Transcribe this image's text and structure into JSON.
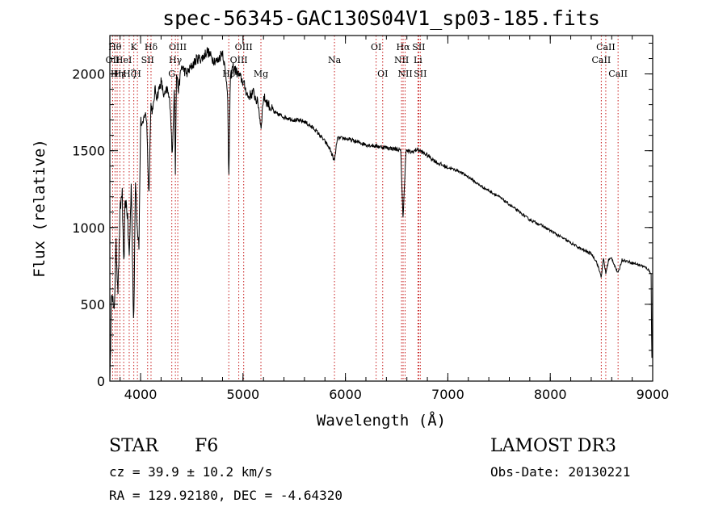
{
  "chart_data": {
    "type": "line",
    "title": "spec-56345-GAC130S04V1_sp03-185.fits",
    "xlabel": "Wavelength (Å)",
    "ylabel": "Flux (relative)",
    "xlim": [
      3700,
      9000
    ],
    "ylim": [
      0,
      2250
    ],
    "xticks": [
      4000,
      5000,
      6000,
      7000,
      8000,
      9000
    ],
    "yticks": [
      0,
      500,
      1000,
      1500,
      2000
    ],
    "grid": false,
    "series": [
      {
        "name": "flux",
        "x": [
          3700,
          3720,
          3740,
          3760,
          3780,
          3800,
          3820,
          3835,
          3850,
          3870,
          3889,
          3910,
          3933,
          3950,
          3968,
          3985,
          4000,
          4020,
          4040,
          4060,
          4080,
          4101,
          4120,
          4140,
          4160,
          4180,
          4200,
          4230,
          4260,
          4290,
          4310,
          4330,
          4340,
          4350,
          4370,
          4400,
          4450,
          4500,
          4550,
          4600,
          4650,
          4700,
          4750,
          4800,
          4830,
          4850,
          4861,
          4875,
          4900,
          4950,
          5000,
          5050,
          5100,
          5150,
          5175,
          5200,
          5250,
          5300,
          5400,
          5500,
          5600,
          5700,
          5800,
          5850,
          5893,
          5920,
          6000,
          6100,
          6200,
          6300,
          6400,
          6500,
          6540,
          6563,
          6590,
          6650,
          6700,
          6800,
          6900,
          7000,
          7100,
          7200,
          7300,
          7400,
          7500,
          7600,
          7700,
          7800,
          7900,
          8000,
          8100,
          8200,
          8300,
          8400,
          8450,
          8498,
          8520,
          8542,
          8570,
          8600,
          8662,
          8700,
          8800,
          8900,
          8950,
          8985,
          8990,
          8995,
          9000
        ],
        "values": [
          0,
          650,
          400,
          880,
          600,
          1100,
          1250,
          700,
          1200,
          1100,
          800,
          1300,
          300,
          1350,
          1000,
          900,
          1700,
          1650,
          1750,
          1700,
          1200,
          1800,
          1750,
          1900,
          1850,
          1900,
          1950,
          1850,
          1900,
          1800,
          1450,
          1950,
          1350,
          2000,
          1900,
          2050,
          2000,
          2050,
          2100,
          2100,
          2150,
          2100,
          2080,
          2150,
          2000,
          1900,
          1250,
          1950,
          2050,
          2000,
          1950,
          1850,
          1880,
          1800,
          1650,
          1850,
          1800,
          1750,
          1720,
          1700,
          1690,
          1640,
          1560,
          1510,
          1430,
          1580,
          1580,
          1560,
          1540,
          1530,
          1520,
          1510,
          1500,
          1050,
          1500,
          1490,
          1510,
          1470,
          1420,
          1390,
          1370,
          1330,
          1280,
          1240,
          1200,
          1150,
          1100,
          1050,
          1020,
          980,
          940,
          900,
          860,
          830,
          780,
          680,
          800,
          700,
          790,
          800,
          700,
          790,
          770,
          750,
          730,
          700,
          200,
          100,
          720
        ]
      }
    ],
    "lines": [
      {
        "wave": 3727,
        "label": "OII",
        "row": 2
      },
      {
        "wave": 3750,
        "label": "Hθ",
        "row": 1
      },
      {
        "wave": 3771,
        "label": "Hη",
        "row": 3
      },
      {
        "wave": 3798,
        "label": "Hε",
        "row": 3
      },
      {
        "wave": 3835,
        "label": "HeI",
        "row": 2
      },
      {
        "wave": 3889,
        "label": "Hζ",
        "row": 3
      },
      {
        "wave": 3934,
        "label": "K",
        "row": 1
      },
      {
        "wave": 3969,
        "label": "H",
        "row": 3
      },
      {
        "wave": 4069,
        "label": "SII",
        "row": 2
      },
      {
        "wave": 4102,
        "label": "Hδ",
        "row": 1
      },
      {
        "wave": 4305,
        "label": "G",
        "row": 3
      },
      {
        "wave": 4340,
        "label": "Hγ",
        "row": 2
      },
      {
        "wave": 4363,
        "label": "OIII",
        "row": 1
      },
      {
        "wave": 4861,
        "label": "Hβ",
        "row": 3
      },
      {
        "wave": 4959,
        "label": "OIII",
        "row": 2
      },
      {
        "wave": 5007,
        "label": "OIII",
        "row": 1
      },
      {
        "wave": 5175,
        "label": "Mg",
        "row": 3
      },
      {
        "wave": 5893,
        "label": "Na",
        "row": 2
      },
      {
        "wave": 6300,
        "label": "OI",
        "row": 1
      },
      {
        "wave": 6364,
        "label": "OI",
        "row": 3
      },
      {
        "wave": 6548,
        "label": "NII",
        "row": 2
      },
      {
        "wave": 6563,
        "label": "Hα",
        "row": 1
      },
      {
        "wave": 6583,
        "label": "NII",
        "row": 3
      },
      {
        "wave": 6708,
        "label": "Li",
        "row": 2
      },
      {
        "wave": 6716,
        "label": "SII",
        "row": 1
      },
      {
        "wave": 6731,
        "label": "SII",
        "row": 3
      },
      {
        "wave": 8498,
        "label": "CaII",
        "row": 2
      },
      {
        "wave": 8542,
        "label": "CaII",
        "row": 1
      },
      {
        "wave": 8662,
        "label": "CaII",
        "row": 3
      }
    ]
  },
  "info": {
    "class": "STAR",
    "subclass": "F6",
    "survey": "LAMOST DR3",
    "cz": "cz = 39.9 ± 10.2 km/s",
    "obs_date": "Obs-Date: 20130221",
    "coords": "RA = 129.92180, DEC =  -4.64320"
  }
}
